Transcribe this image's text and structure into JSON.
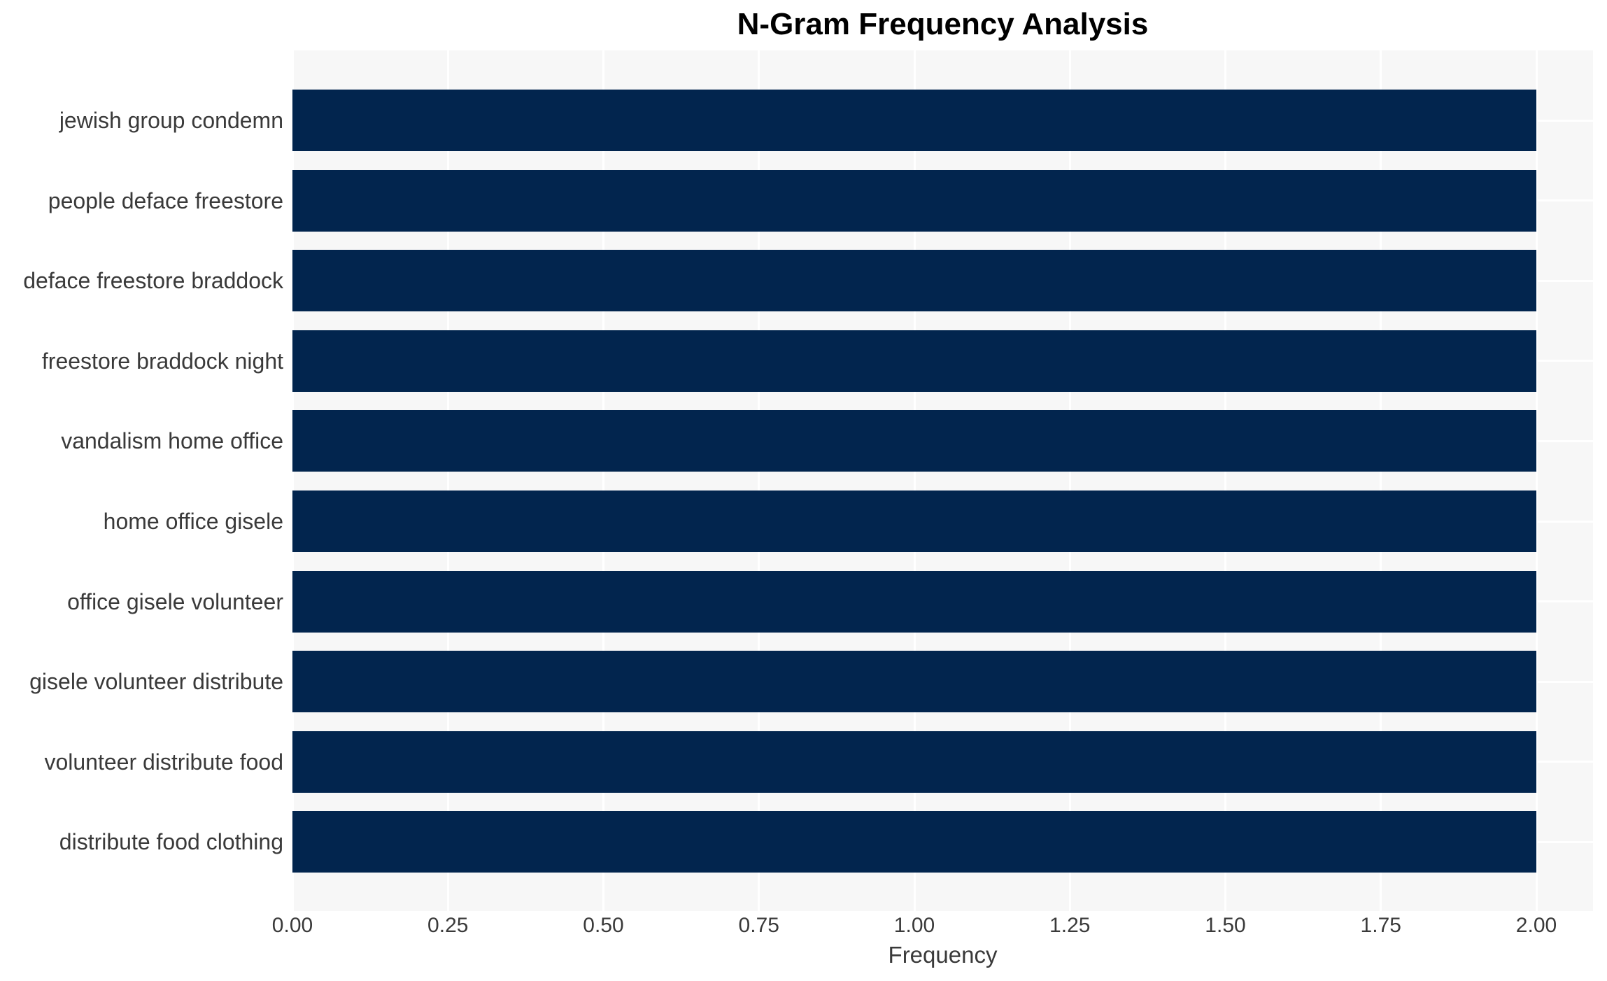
{
  "chart_data": {
    "type": "bar",
    "orientation": "horizontal",
    "title": "N-Gram Frequency Analysis",
    "xlabel": "Frequency",
    "ylabel": "",
    "categories": [
      "jewish group condemn",
      "people deface freestore",
      "deface freestore braddock",
      "freestore braddock night",
      "vandalism home office",
      "home office gisele",
      "office gisele volunteer",
      "gisele volunteer distribute",
      "volunteer distribute food",
      "distribute food clothing"
    ],
    "values": [
      2,
      2,
      2,
      2,
      2,
      2,
      2,
      2,
      2,
      2
    ],
    "x_ticks": [
      "0.00",
      "0.25",
      "0.50",
      "0.75",
      "1.00",
      "1.25",
      "1.50",
      "1.75",
      "2.00"
    ],
    "x_tick_values": [
      0,
      0.25,
      0.5,
      0.75,
      1.0,
      1.25,
      1.5,
      1.75,
      2.0
    ],
    "xlim": [
      0,
      2.09
    ],
    "grid": "white gridlines on light plot background, vertical at x ticks and horizontal at bar centers",
    "legend": false,
    "colors": {
      "bar": "#02254e",
      "plot_background": "#f7f7f7",
      "gridline": "#ffffff",
      "text": "#3a3a3a",
      "title": "#000000",
      "page_background": "#ffffff"
    }
  }
}
